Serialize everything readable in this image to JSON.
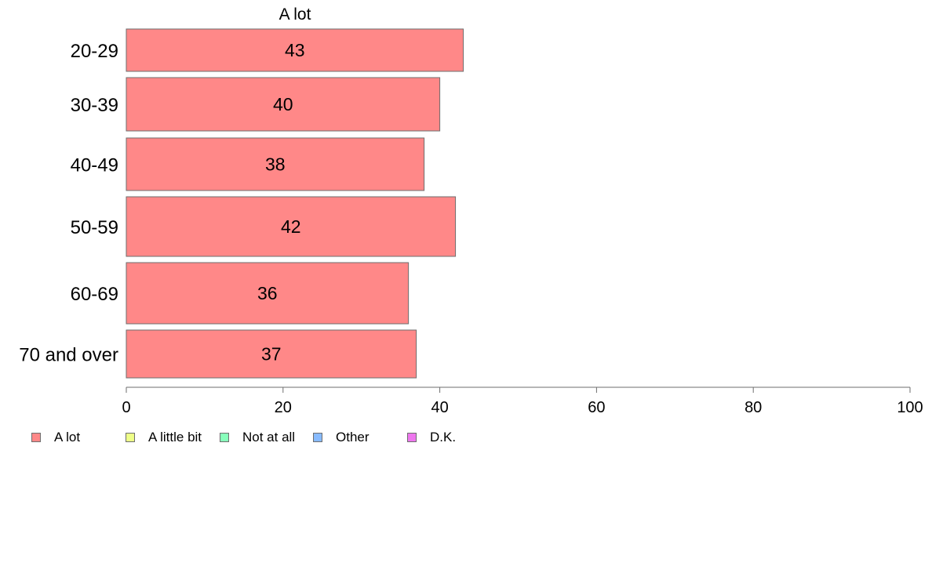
{
  "chart_data": {
    "type": "bar",
    "orientation": "horizontal",
    "title": "A lot",
    "categories": [
      "20-29",
      "30-39",
      "40-49",
      "50-59",
      "60-69",
      "70 and over"
    ],
    "series": [
      {
        "name": "A lot",
        "values": [
          43,
          40,
          38,
          42,
          36,
          37
        ],
        "color": "#FF8888"
      }
    ],
    "xlim": [
      0,
      100
    ],
    "xticks": [
      0,
      20,
      40,
      60,
      80,
      100
    ],
    "grid": false,
    "legend_position": "bottom-left"
  },
  "legend": {
    "items": [
      {
        "label": "A lot",
        "color": "#FF8888"
      },
      {
        "label": "A little bit",
        "color": "#EEFF88"
      },
      {
        "label": "Not at all",
        "color": "#88FFBB"
      },
      {
        "label": "Other",
        "color": "#88BBFF"
      },
      {
        "label": "D.K.",
        "color": "#EE77EE"
      }
    ]
  }
}
